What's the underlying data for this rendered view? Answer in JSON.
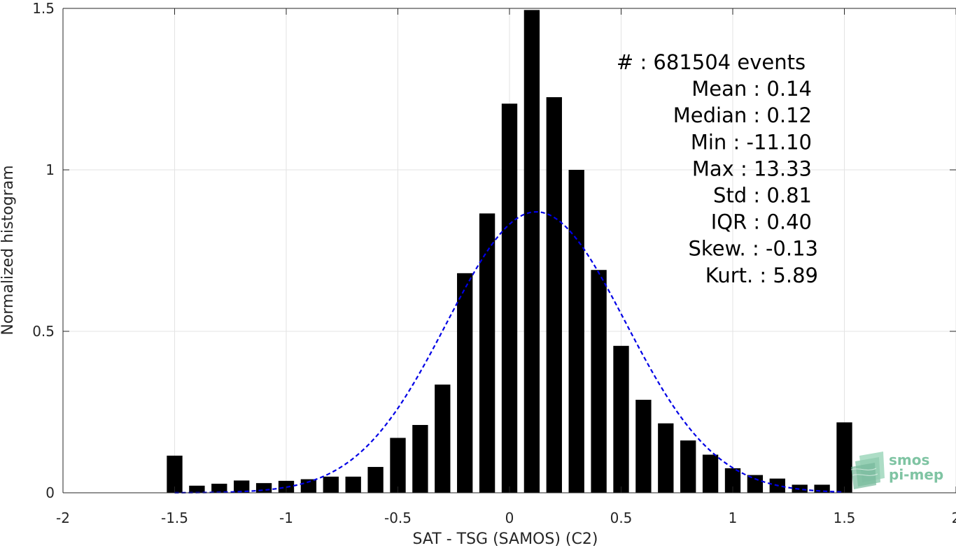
{
  "chart_data": {
    "type": "bar",
    "title": "",
    "xlabel": "SAT - TSG (SAMOS) (C2)",
    "ylabel": "Normalized histogram",
    "xlim": [
      -2,
      2
    ],
    "ylim": [
      0,
      1.5
    ],
    "grid": true,
    "x_ticks": [
      -2,
      -1.5,
      -1,
      -0.5,
      0,
      0.5,
      1,
      1.5,
      2
    ],
    "x_tick_labels": [
      "-2",
      "-1.5",
      "-1",
      "-0.5",
      "0",
      "0.5",
      "1",
      "1.5",
      "2"
    ],
    "y_ticks": [
      0,
      0.5,
      1,
      1.5
    ],
    "y_tick_labels": [
      "0",
      "0.5",
      "1",
      "1.5"
    ],
    "bar_width": 0.07,
    "bar_color": "#000000",
    "bars": {
      "x": [
        -1.5,
        -1.4,
        -1.3,
        -1.2,
        -1.1,
        -1.0,
        -0.9,
        -0.8,
        -0.7,
        -0.6,
        -0.5,
        -0.4,
        -0.3,
        -0.2,
        -0.1,
        0.0,
        0.1,
        0.2,
        0.3,
        0.4,
        0.5,
        0.6,
        0.7,
        0.8,
        0.9,
        1.0,
        1.1,
        1.2,
        1.3,
        1.4,
        1.5
      ],
      "values": [
        0.115,
        0.022,
        0.028,
        0.038,
        0.03,
        0.037,
        0.042,
        0.05,
        0.05,
        0.08,
        0.17,
        0.21,
        0.335,
        0.68,
        0.865,
        1.205,
        1.495,
        1.225,
        1.0,
        0.69,
        0.455,
        0.288,
        0.215,
        0.162,
        0.118,
        0.076,
        0.055,
        0.044,
        0.025,
        0.025,
        0.218
      ]
    },
    "fit": {
      "type": "gaussian",
      "mean": 0.12,
      "peak": 0.87,
      "sigma": 0.4,
      "x_range": [
        -1.5,
        1.5
      ],
      "color": "#0000e6",
      "style": "dashed"
    },
    "annotations": [
      {
        "label": "#  : 681504 events",
        "align": "center"
      },
      {
        "label": "Mean : 0.14",
        "align": "right"
      },
      {
        "label": "Median : 0.12",
        "align": "right"
      },
      {
        "label": "Min : -11.10",
        "align": "right"
      },
      {
        "label": "Max : 13.33",
        "align": "right"
      },
      {
        "label": "Std : 0.81",
        "align": "right"
      },
      {
        "label": "IQR : 0.40",
        "align": "right"
      },
      {
        "label": "Skew. : -0.13",
        "align": "right-wide"
      },
      {
        "label": "Kurt. : 5.89",
        "align": "right-wide"
      }
    ]
  },
  "logo": {
    "line1": "smos",
    "line2": "pi-mep",
    "icon": "smos-pi-mep-logo-icon"
  }
}
